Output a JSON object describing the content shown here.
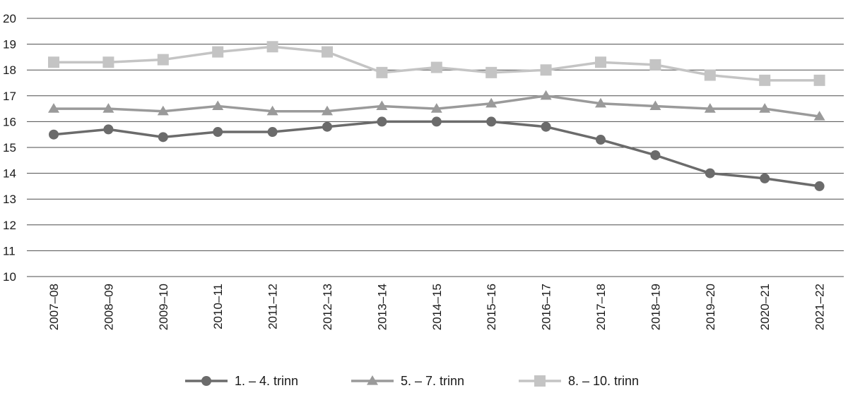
{
  "chart_data": {
    "type": "line",
    "title": "",
    "xlabel": "",
    "ylabel": "",
    "ylim": [
      10,
      20
    ],
    "yticks": [
      10,
      11,
      12,
      13,
      14,
      15,
      16,
      17,
      18,
      19,
      20
    ],
    "grid": "horizontal",
    "legend_position": "bottom",
    "categories": [
      "2007–08",
      "2008–09",
      "2009–10",
      "2010–11",
      "2011–12",
      "2012–13",
      "2013–14",
      "2014–15",
      "2015–16",
      "2016–17",
      "2017–18",
      "2018–19",
      "2019–20",
      "2020–21",
      "2021–22"
    ],
    "series": [
      {
        "name": "1. – 4. trinn",
        "marker": "circle",
        "color": "#6b6b6b",
        "values": [
          15.5,
          15.7,
          15.4,
          15.6,
          15.6,
          15.8,
          16.0,
          16.0,
          16.0,
          15.8,
          15.3,
          14.7,
          14.0,
          13.8,
          13.5
        ]
      },
      {
        "name": "5. – 7. trinn",
        "marker": "triangle",
        "color": "#9a9a9a",
        "values": [
          16.5,
          16.5,
          16.4,
          16.6,
          16.4,
          16.4,
          16.6,
          16.5,
          16.7,
          17.0,
          16.7,
          16.6,
          16.5,
          16.5,
          16.2
        ]
      },
      {
        "name": "8. – 10. trinn",
        "marker": "square",
        "color": "#c4c4c4",
        "values": [
          18.3,
          18.3,
          18.4,
          18.7,
          18.9,
          18.7,
          17.9,
          18.1,
          17.9,
          18.0,
          18.3,
          18.2,
          17.8,
          17.6,
          17.6
        ]
      }
    ]
  }
}
